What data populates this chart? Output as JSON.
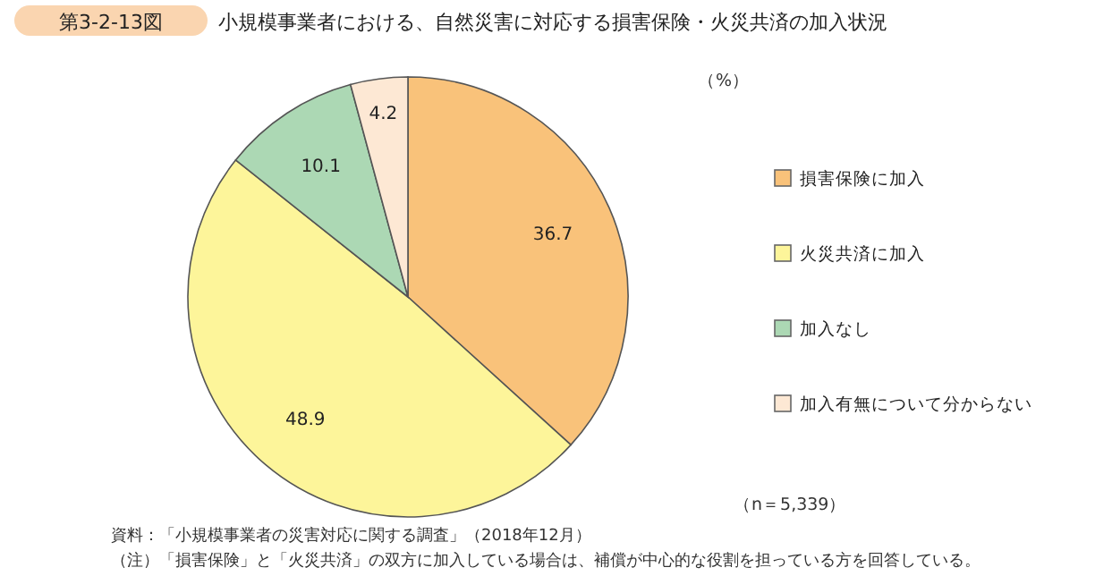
{
  "chart_data": {
    "type": "pie",
    "title": "小規模事業者における、自然災害に対応する損害保険・火災共済の加入状況",
    "subtitle": "第3-2-13図",
    "categories": [
      "損害保険に加入",
      "火災共済に加入",
      "加入なし",
      "加入有無について分からない"
    ],
    "values": [
      36.7,
      48.9,
      10.1,
      4.2
    ],
    "colors": [
      "#f9c27a",
      "#fdf59a",
      "#acd8b4",
      "#fde8d4"
    ],
    "data_labels": true,
    "legend": "right",
    "annotations": [
      "（%）",
      "（n＝5,339）",
      "資料：「小規模事業者の災害対応に関する調査」（2018年12月）",
      "（注）「損害保険」と「火災共済」の双方に加入している場合は、補償が中心的な役割を担っている方を回答している。"
    ]
  }
}
